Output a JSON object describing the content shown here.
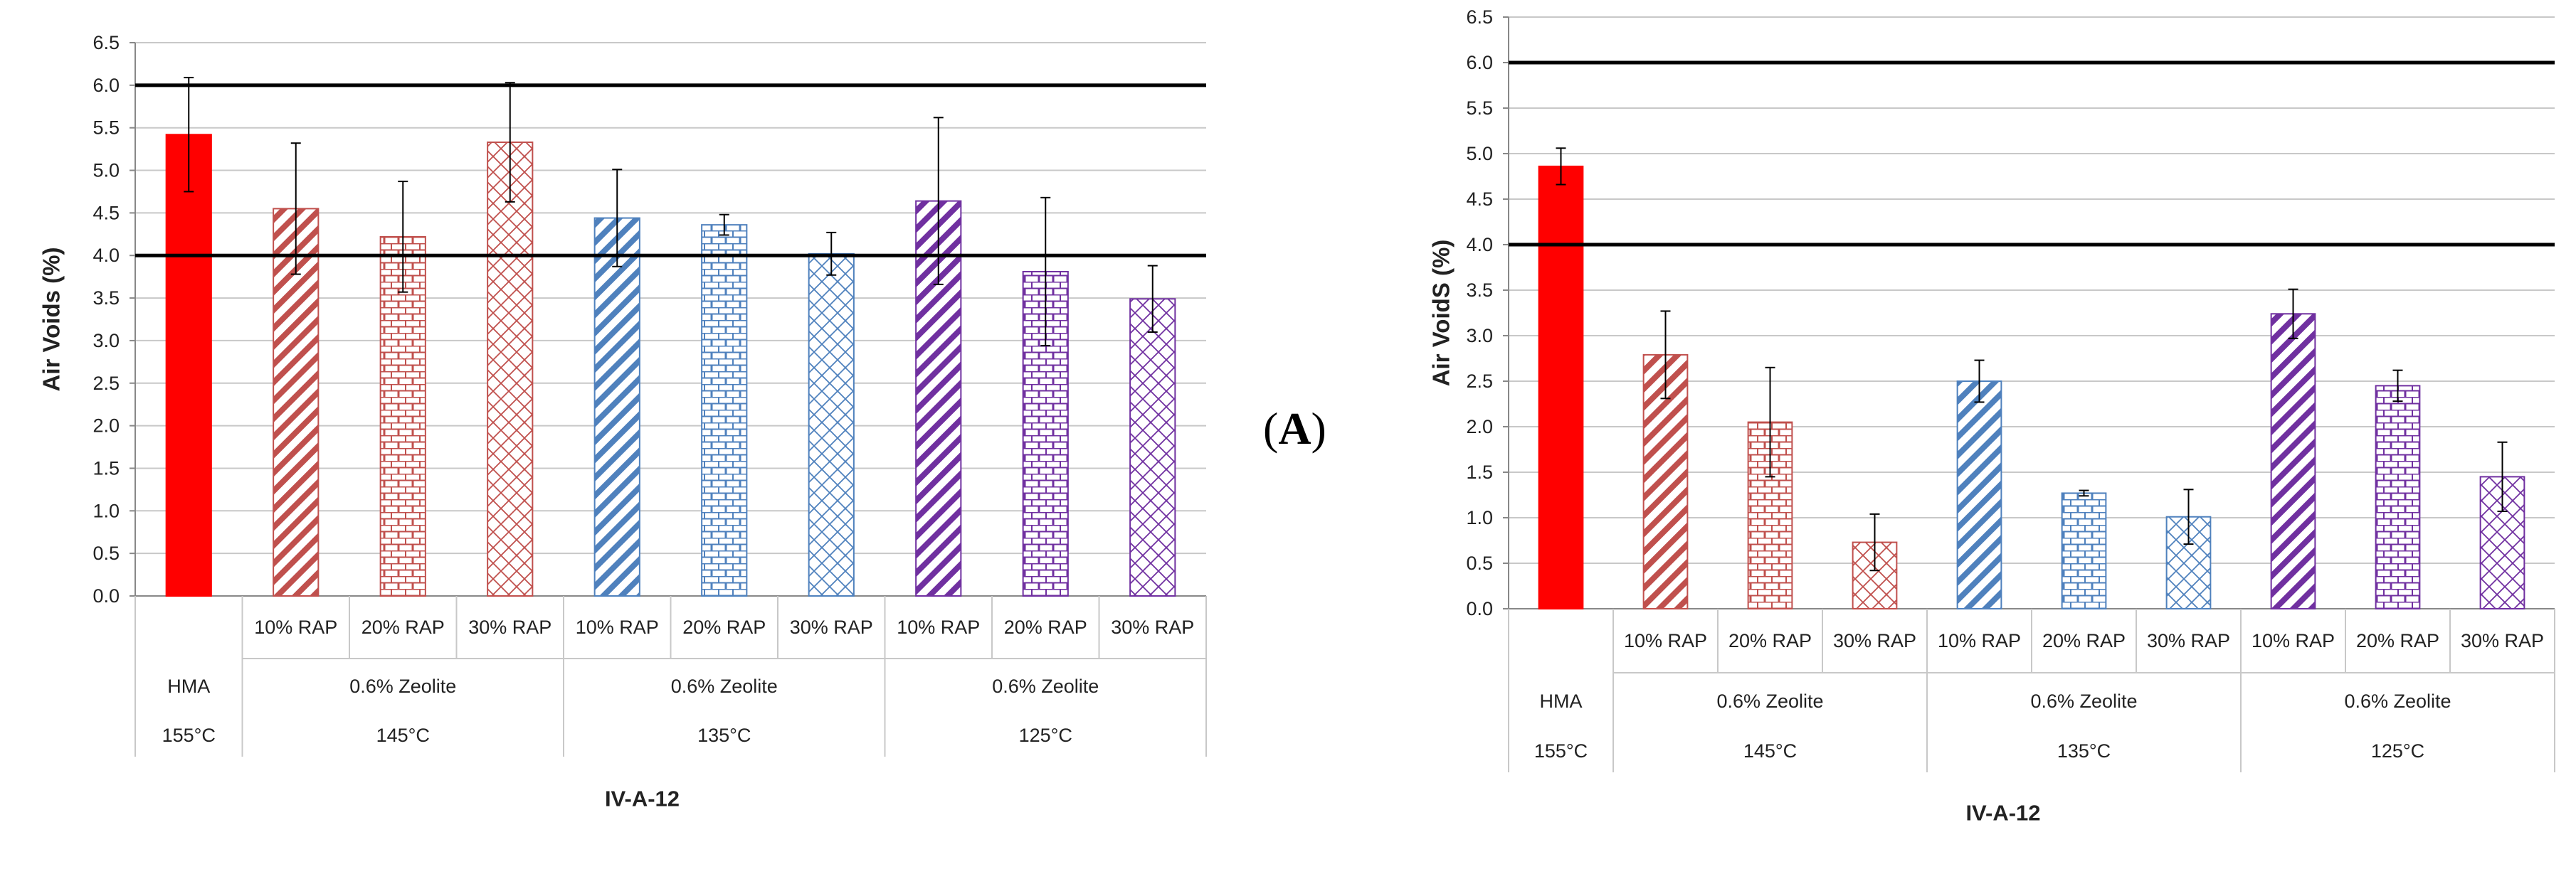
{
  "panel_label": {
    "open": "(",
    "letter": "A",
    "close": ")"
  },
  "colors": {
    "hma": "#ff0000",
    "series_145": "#c0504d",
    "series_135": "#4f81bd",
    "series_125": "#7030a0",
    "reference_line": "#000000",
    "grid": "#c8c8c8"
  },
  "chart_data": [
    {
      "type": "bar",
      "title": "",
      "xlabel": "IV-A-12",
      "ylabel": "Air Voids (%)",
      "ylim": [
        0,
        6.5
      ],
      "yticks": [
        "0.0",
        "0.5",
        "1.0",
        "1.5",
        "2.0",
        "2.5",
        "3.0",
        "3.5",
        "4.0",
        "4.5",
        "5.0",
        "5.5",
        "6.0",
        "6.5"
      ],
      "grid": true,
      "reference_lines": [
        4.0,
        6.0
      ],
      "category_rows": [
        [
          "",
          "10% RAP",
          "20% RAP",
          "30% RAP",
          "10% RAP",
          "20% RAP",
          "30% RAP",
          "10% RAP",
          "20% RAP",
          "30% RAP"
        ],
        [
          "HMA",
          "0.6% Zeolite",
          "0.6% Zeolite",
          "0.6% Zeolite"
        ],
        [
          "155°C",
          "145°C",
          "135°C",
          "125°C"
        ]
      ],
      "bars": [
        {
          "label": "HMA 155°C",
          "value": 5.42,
          "error": 0.67,
          "style": "solid",
          "color": "hma"
        },
        {
          "label": "10% RAP 145°C",
          "value": 4.55,
          "error": 0.77,
          "style": "diagonal",
          "color": "series_145"
        },
        {
          "label": "20% RAP 145°C",
          "value": 4.22,
          "error": 0.65,
          "style": "brick",
          "color": "series_145"
        },
        {
          "label": "30% RAP 145°C",
          "value": 5.33,
          "error": 0.7,
          "style": "lattice",
          "color": "series_145"
        },
        {
          "label": "10% RAP 135°C",
          "value": 4.44,
          "error": 0.57,
          "style": "diagonal",
          "color": "series_135"
        },
        {
          "label": "20% RAP 135°C",
          "value": 4.36,
          "error": 0.12,
          "style": "brick",
          "color": "series_135"
        },
        {
          "label": "30% RAP 135°C",
          "value": 4.02,
          "error": 0.25,
          "style": "lattice",
          "color": "series_135"
        },
        {
          "label": "10% RAP 125°C",
          "value": 4.64,
          "error": 0.98,
          "style": "diagonal",
          "color": "series_125"
        },
        {
          "label": "20% RAP 125°C",
          "value": 3.81,
          "error": 0.87,
          "style": "brick",
          "color": "series_125"
        },
        {
          "label": "30% RAP 125°C",
          "value": 3.49,
          "error": 0.39,
          "style": "lattice",
          "color": "series_125"
        }
      ]
    },
    {
      "type": "bar",
      "title": "",
      "xlabel": "IV-A-12",
      "ylabel": "Air VoidS (%)",
      "ylim": [
        0,
        6.5
      ],
      "yticks": [
        "0.0",
        "0.5",
        "1.0",
        "1.5",
        "2.0",
        "2.5",
        "3.0",
        "3.5",
        "4.0",
        "4.5",
        "5.0",
        "5.5",
        "6.0",
        "6.5"
      ],
      "grid": true,
      "reference_lines": [
        4.0,
        6.0
      ],
      "category_rows": [
        [
          "",
          "10% RAP",
          "20% RAP",
          "30% RAP",
          "10% RAP",
          "20% RAP",
          "30% RAP",
          "10% RAP",
          "20% RAP",
          "30% RAP"
        ],
        [
          "HMA",
          "0.6% Zeolite",
          "0.6% Zeolite",
          "0.6% Zeolite"
        ],
        [
          "155°C",
          "145°C",
          "135°C",
          "125°C"
        ]
      ],
      "bars": [
        {
          "label": "HMA 155°C",
          "value": 4.86,
          "error": 0.2,
          "style": "solid",
          "color": "hma"
        },
        {
          "label": "10% RAP 145°C",
          "value": 2.79,
          "error": 0.48,
          "style": "diagonal",
          "color": "series_145"
        },
        {
          "label": "20% RAP 145°C",
          "value": 2.05,
          "error": 0.6,
          "style": "brick",
          "color": "series_145"
        },
        {
          "label": "30% RAP 145°C",
          "value": 0.73,
          "error": 0.31,
          "style": "lattice",
          "color": "series_145"
        },
        {
          "label": "10% RAP 135°C",
          "value": 2.5,
          "error": 0.23,
          "style": "diagonal",
          "color": "series_135"
        },
        {
          "label": "20% RAP 135°C",
          "value": 1.27,
          "error": 0.03,
          "style": "brick",
          "color": "series_135"
        },
        {
          "label": "30% RAP 135°C",
          "value": 1.01,
          "error": 0.3,
          "style": "lattice",
          "color": "series_135"
        },
        {
          "label": "10% RAP 125°C",
          "value": 3.24,
          "error": 0.27,
          "style": "diagonal",
          "color": "series_125"
        },
        {
          "label": "20% RAP 125°C",
          "value": 2.45,
          "error": 0.17,
          "style": "brick",
          "color": "series_125"
        },
        {
          "label": "30% RAP 125°C",
          "value": 1.45,
          "error": 0.38,
          "style": "lattice",
          "color": "series_125"
        }
      ]
    }
  ]
}
